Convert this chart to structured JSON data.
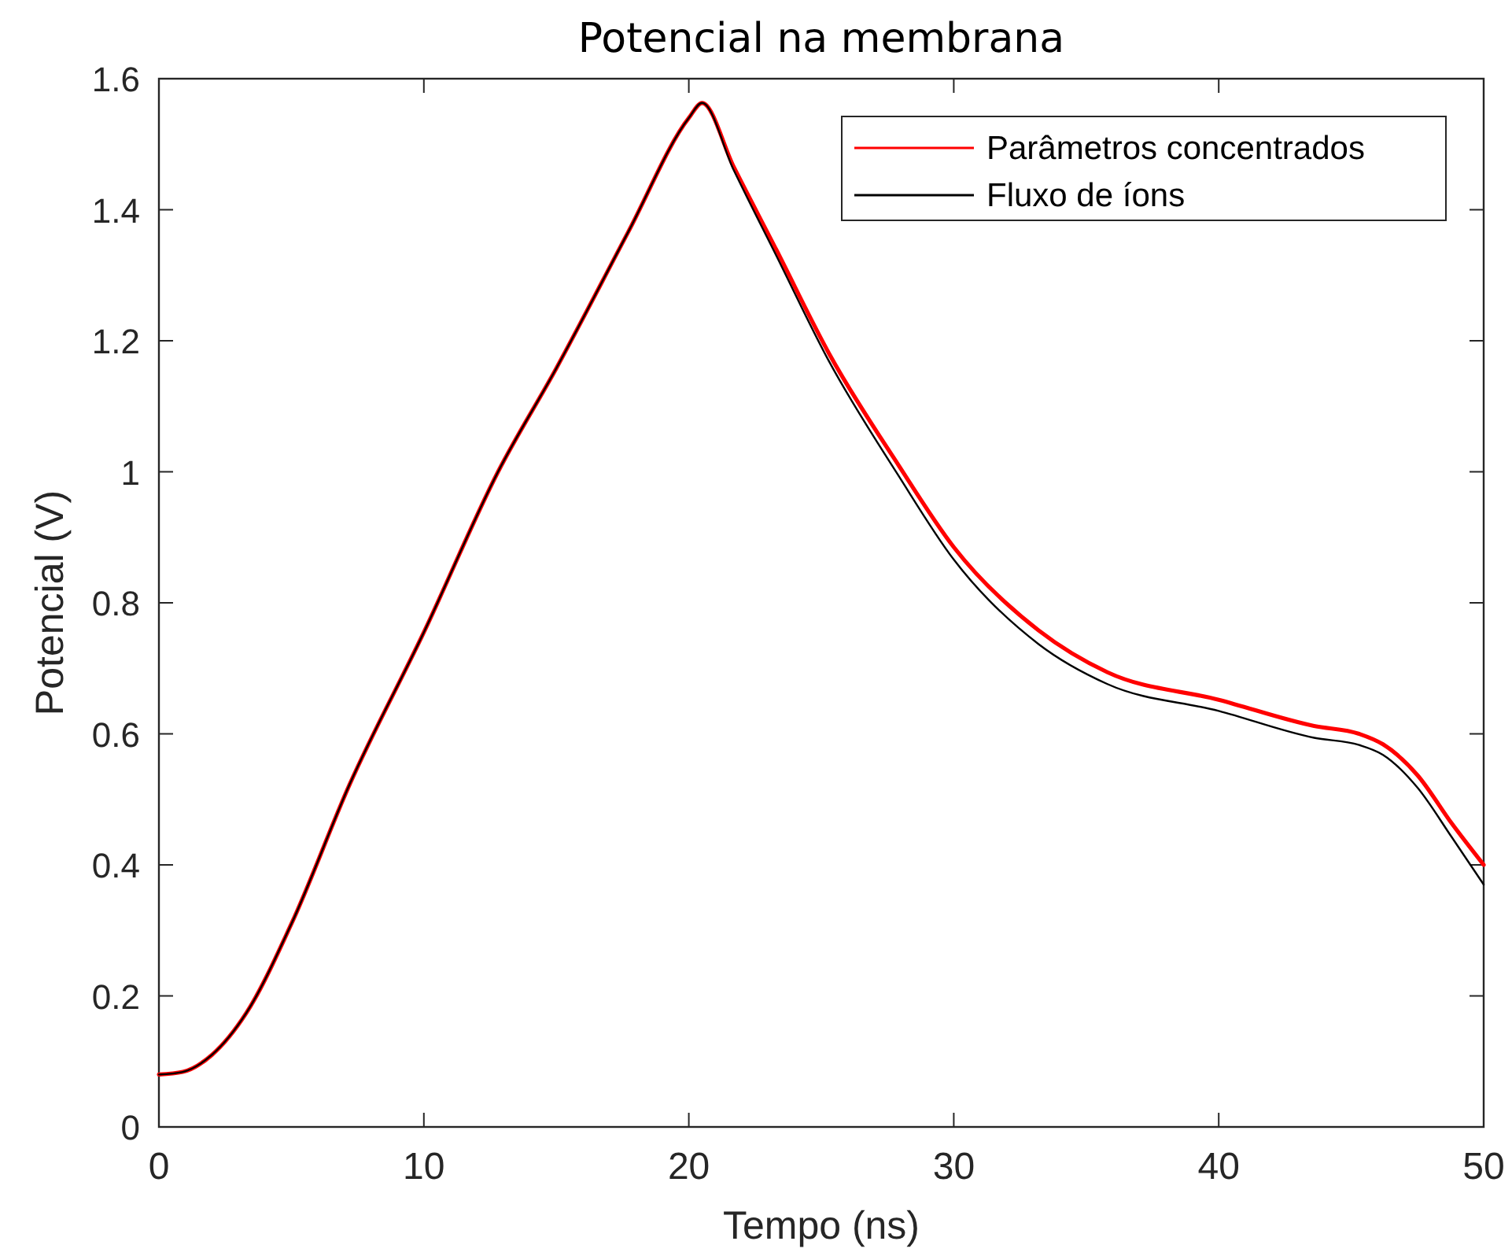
{
  "chart_data": {
    "type": "line",
    "title": "Potencial na membrana",
    "xlabel": "Tempo (ns)",
    "ylabel": "Potencial (V)",
    "xlim": [
      0,
      50
    ],
    "xticks": [
      0,
      10,
      20,
      30,
      40,
      50
    ],
    "ylim": [
      0,
      1.6
    ],
    "yticks": [
      0,
      0.2,
      0.4,
      0.6,
      0.8,
      1,
      1.2,
      1.4,
      1.6
    ],
    "grid": false,
    "legend": "top right",
    "marker": "none",
    "line_style": "solid",
    "series": [
      {
        "name": "Parâmetros concentrados",
        "color": "#ff0000",
        "x": [
          0,
          0.9,
          2,
          3.3,
          5,
          7.2,
          10,
          12.8,
          15,
          17.7,
          20,
          20.5,
          21.7,
          23.3,
          25.3,
          27.9,
          30,
          33.2,
          35.8,
          40,
          43.6,
          45.3,
          46.2,
          47.5,
          48.8,
          50
        ],
        "values": [
          0.08,
          0.084,
          0.11,
          0.174,
          0.31,
          0.523,
          0.755,
          1.0,
          1.158,
          1.365,
          1.54,
          1.563,
          1.465,
          1.339,
          1.18,
          1.011,
          0.885,
          0.758,
          0.694,
          0.652,
          0.612,
          0.6,
          0.584,
          0.537,
          0.463,
          0.4
        ]
      },
      {
        "name": "Fluxo de íons",
        "color": "#000000",
        "x": [
          0,
          0.9,
          2,
          3.3,
          5,
          7.2,
          10,
          12.8,
          15,
          17.7,
          20,
          20.5,
          21.7,
          23.3,
          25.3,
          27.9,
          30,
          33.2,
          35.8,
          40,
          43.6,
          45.3,
          46.2,
          47.5,
          48.8,
          50
        ],
        "values": [
          0.08,
          0.084,
          0.11,
          0.174,
          0.31,
          0.523,
          0.755,
          1.0,
          1.158,
          1.365,
          1.54,
          1.563,
          1.46,
          1.33,
          1.168,
          0.995,
          0.866,
          0.737,
          0.676,
          0.635,
          0.594,
          0.583,
          0.568,
          0.518,
          0.442,
          0.37
        ]
      }
    ]
  }
}
